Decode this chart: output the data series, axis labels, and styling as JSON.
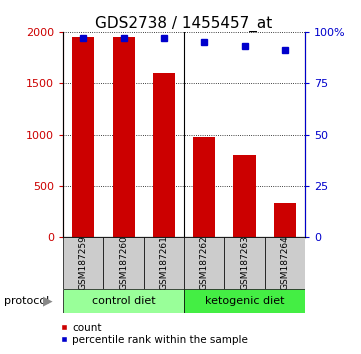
{
  "title": "GDS2738 / 1455457_at",
  "samples": [
    "GSM187259",
    "GSM187260",
    "GSM187261",
    "GSM187262",
    "GSM187263",
    "GSM187264"
  ],
  "counts": [
    1950,
    1950,
    1600,
    980,
    800,
    330
  ],
  "percentile_ranks": [
    97,
    97,
    97,
    95,
    93,
    91
  ],
  "bar_color": "#cc0000",
  "dot_color": "#0000cc",
  "ylim_left": [
    0,
    2000
  ],
  "ylim_right": [
    0,
    100
  ],
  "yticks_left": [
    0,
    500,
    1000,
    1500,
    2000
  ],
  "yticks_right": [
    0,
    25,
    50,
    75,
    100
  ],
  "ylabel_left_ticks": [
    "0",
    "500",
    "1000",
    "1500",
    "2000"
  ],
  "ylabel_right_ticks": [
    "0",
    "25",
    "50",
    "75",
    "100%"
  ],
  "group_ctrl_label": "control diet",
  "group_ctrl_color": "#99ff99",
  "group_keto_label": "ketogenic diet",
  "group_keto_color": "#44ee44",
  "protocol_label": "protocol",
  "legend_count_label": "count",
  "legend_pct_label": "percentile rank within the sample",
  "background_color": "#ffffff",
  "bar_width": 0.55,
  "title_fontsize": 11,
  "tick_fontsize": 8,
  "sample_fontsize": 6.5,
  "group_fontsize": 8,
  "legend_fontsize": 7.5,
  "protocol_fontsize": 8
}
